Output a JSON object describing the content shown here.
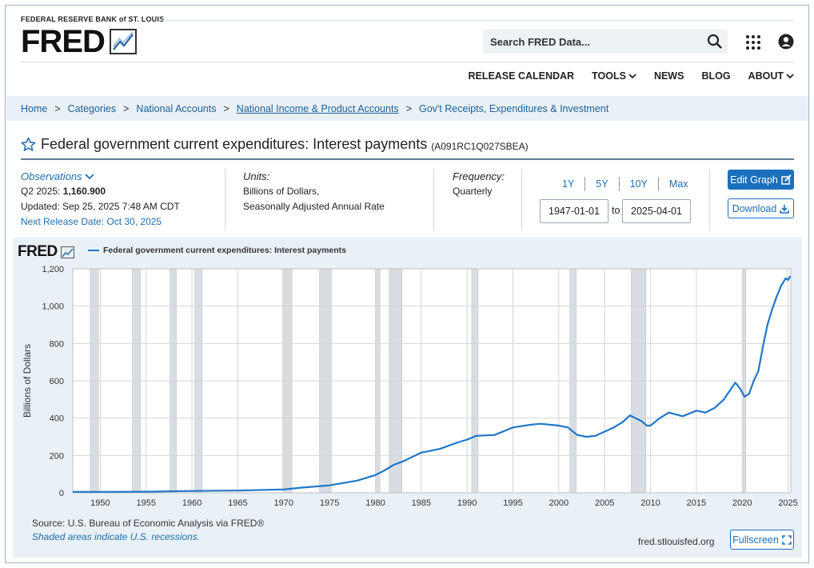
{
  "header": {
    "bank_name": "FEDERAL RESERVE BANK of ST. LOUIS",
    "logo_text": "FRED",
    "search_placeholder": "Search FRED Data...",
    "nav": [
      {
        "label": "RELEASE CALENDAR",
        "has_dropdown": false
      },
      {
        "label": "TOOLS",
        "has_dropdown": true
      },
      {
        "label": "NEWS",
        "has_dropdown": false
      },
      {
        "label": "BLOG",
        "has_dropdown": false
      },
      {
        "label": "ABOUT",
        "has_dropdown": true
      }
    ]
  },
  "breadcrumb": [
    "Home",
    "Categories",
    "National Accounts",
    "National Income & Product Accounts",
    "Gov't Receipts, Expenditures & Investment"
  ],
  "series": {
    "title": "Federal government current expenditures: Interest payments",
    "id": "(A091RC1Q027SBEA)"
  },
  "observations": {
    "label": "Observations",
    "period": "Q2 2025:",
    "value": "1,160.900",
    "updated": "Updated: Sep 25, 2025 7:48 AM CDT",
    "next_release": "Next Release Date: Oct 30, 2025"
  },
  "units": {
    "label": "Units:",
    "line1": "Billions of Dollars,",
    "line2": "Seasonally Adjusted Annual Rate"
  },
  "frequency": {
    "label": "Frequency:",
    "value": "Quarterly"
  },
  "range": {
    "buttons": [
      "1Y",
      "5Y",
      "10Y",
      "Max"
    ],
    "start": "1947-01-01",
    "to_label": "to",
    "end": "2025-04-01"
  },
  "buttons": {
    "edit_graph": "Edit Graph",
    "download": "Download",
    "fullscreen": "Fullscreen"
  },
  "footer": {
    "source": "Source: U.S. Bureau of Economic Analysis via FRED®",
    "shaded_note": "Shaded areas indicate U.S. recessions.",
    "site": "fred.stlouisfed.org"
  },
  "colors": {
    "accent": "#1c6fbc",
    "link": "#1f6fb2",
    "series_line": "#1f77c9",
    "recession_shade": "#d9dde2",
    "panel_bg": "#e9f1f7"
  },
  "chart_data": {
    "type": "line",
    "logo_text": "FRED",
    "legend": "Federal government current expenditures: Interest payments",
    "ylabel": "Billions of Dollars",
    "xlim": [
      1947.0,
      2025.3
    ],
    "ylim": [
      0,
      1200
    ],
    "yticks": [
      0,
      200,
      400,
      600,
      800,
      1000,
      1200
    ],
    "ytick_labels": [
      "0",
      "200",
      "400",
      "600",
      "800",
      "1,000",
      "1,200"
    ],
    "xticks": [
      1950,
      1955,
      1960,
      1965,
      1970,
      1975,
      1980,
      1985,
      1990,
      1995,
      2000,
      2005,
      2010,
      2015,
      2020,
      2025
    ],
    "grid": true,
    "recessions": [
      [
        1948.9,
        1949.8
      ],
      [
        1953.5,
        1954.4
      ],
      [
        1957.6,
        1958.3
      ],
      [
        1960.3,
        1961.1
      ],
      [
        1969.9,
        1970.9
      ],
      [
        1973.9,
        1975.2
      ],
      [
        1980.0,
        1980.5
      ],
      [
        1981.5,
        1982.9
      ],
      [
        1990.5,
        1991.2
      ],
      [
        2001.2,
        2001.9
      ],
      [
        2007.9,
        2009.5
      ],
      [
        2020.1,
        2020.4
      ]
    ],
    "series": [
      {
        "name": "Federal government current expenditures: Interest payments",
        "x": [
          1947,
          1950,
          1955,
          1960,
          1965,
          1970,
          1972,
          1975,
          1978,
          1980,
          1981,
          1982,
          1983,
          1985,
          1987,
          1989,
          1990,
          1991,
          1993,
          1995,
          1997,
          1998,
          2000,
          2001,
          2002,
          2003,
          2004,
          2006,
          2007,
          2007.75,
          2009,
          2009.6,
          2010,
          2011,
          2012,
          2013.5,
          2014,
          2015,
          2016,
          2017,
          2018,
          2018.75,
          2019.25,
          2019.75,
          2020.25,
          2020.75,
          2021.25,
          2021.75,
          2022.25,
          2022.75,
          2023.25,
          2023.75,
          2024.25,
          2024.75,
          2025,
          2025.25
        ],
        "y": [
          5,
          5,
          6,
          10,
          12,
          18,
          28,
          40,
          65,
          95,
          120,
          150,
          168,
          215,
          235,
          270,
          285,
          305,
          310,
          350,
          365,
          370,
          360,
          350,
          310,
          300,
          305,
          350,
          380,
          415,
          385,
          360,
          360,
          400,
          430,
          410,
          420,
          440,
          430,
          455,
          500,
          555,
          590,
          560,
          515,
          530,
          600,
          650,
          780,
          900,
          980,
          1050,
          1110,
          1150,
          1140,
          1161
        ]
      }
    ]
  }
}
